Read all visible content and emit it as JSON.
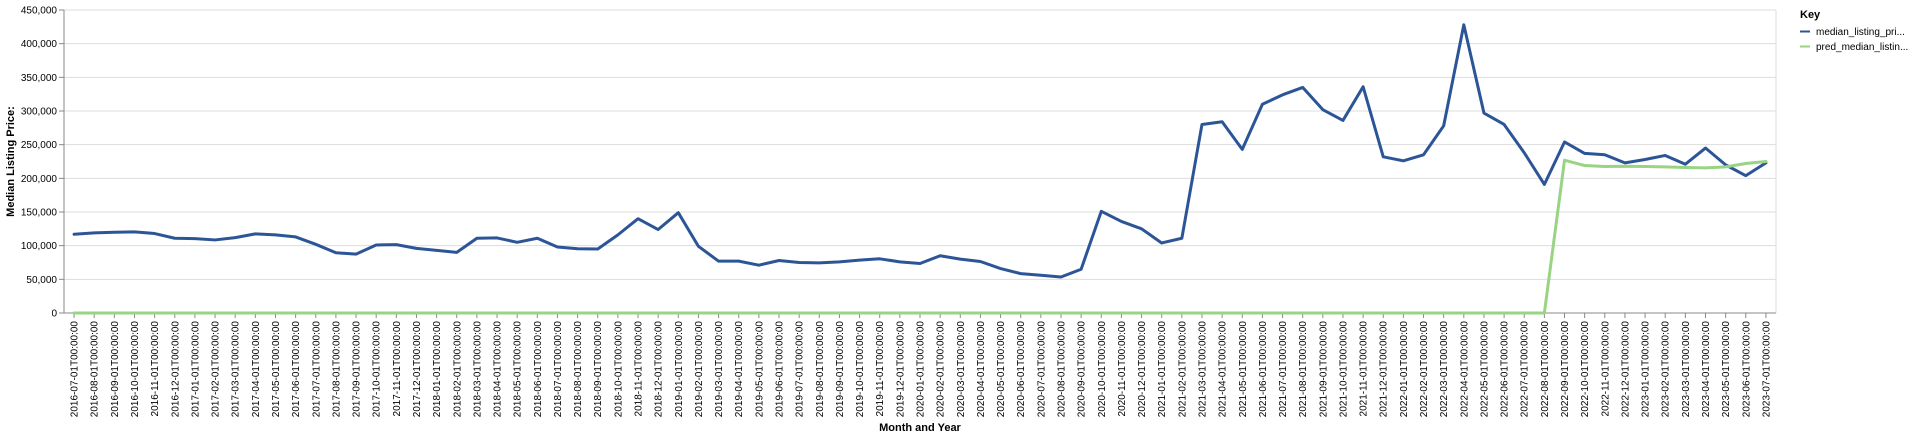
{
  "chart_data": {
    "type": "line",
    "xlabel": "Month and Year",
    "ylabel": "Median Listing Price:",
    "ylim": [
      0,
      450000
    ],
    "yticks": [
      0,
      50000,
      100000,
      150000,
      200000,
      250000,
      300000,
      350000,
      400000,
      450000
    ],
    "ytick_labels": [
      "0",
      "50,000",
      "100,000",
      "150,000",
      "200,000",
      "250,000",
      "300,000",
      "350,000",
      "400,000",
      "450,000"
    ],
    "grid": true,
    "legend_position": "top-right",
    "legend_title": "Key",
    "x": [
      "2016-07-01T00:00:00",
      "2016-08-01T00:00:00",
      "2016-09-01T00:00:00",
      "2016-10-01T00:00:00",
      "2016-11-01T00:00:00",
      "2016-12-01T00:00:00",
      "2017-01-01T00:00:00",
      "2017-02-01T00:00:00",
      "2017-03-01T00:00:00",
      "2017-04-01T00:00:00",
      "2017-05-01T00:00:00",
      "2017-06-01T00:00:00",
      "2017-07-01T00:00:00",
      "2017-08-01T00:00:00",
      "2017-09-01T00:00:00",
      "2017-10-01T00:00:00",
      "2017-11-01T00:00:00",
      "2017-12-01T00:00:00",
      "2018-01-01T00:00:00",
      "2018-02-01T00:00:00",
      "2018-03-01T00:00:00",
      "2018-04-01T00:00:00",
      "2018-05-01T00:00:00",
      "2018-06-01T00:00:00",
      "2018-07-01T00:00:00",
      "2018-08-01T00:00:00",
      "2018-09-01T00:00:00",
      "2018-10-01T00:00:00",
      "2018-11-01T00:00:00",
      "2018-12-01T00:00:00",
      "2019-01-01T00:00:00",
      "2019-02-01T00:00:00",
      "2019-03-01T00:00:00",
      "2019-04-01T00:00:00",
      "2019-05-01T00:00:00",
      "2019-06-01T00:00:00",
      "2019-07-01T00:00:00",
      "2019-08-01T00:00:00",
      "2019-09-01T00:00:00",
      "2019-10-01T00:00:00",
      "2019-11-01T00:00:00",
      "2019-12-01T00:00:00",
      "2020-01-01T00:00:00",
      "2020-02-01T00:00:00",
      "2020-03-01T00:00:00",
      "2020-04-01T00:00:00",
      "2020-05-01T00:00:00",
      "2020-06-01T00:00:00",
      "2020-07-01T00:00:00",
      "2020-08-01T00:00:00",
      "2020-09-01T00:00:00",
      "2020-10-01T00:00:00",
      "2020-11-01T00:00:00",
      "2020-12-01T00:00:00",
      "2021-01-01T00:00:00",
      "2021-02-01T00:00:00",
      "2021-03-01T00:00:00",
      "2021-04-01T00:00:00",
      "2021-05-01T00:00:00",
      "2021-06-01T00:00:00",
      "2021-07-01T00:00:00",
      "2021-08-01T00:00:00",
      "2021-09-01T00:00:00",
      "2021-10-01T00:00:00",
      "2021-11-01T00:00:00",
      "2021-12-01T00:00:00",
      "2022-01-01T00:00:00",
      "2022-02-01T00:00:00",
      "2022-03-01T00:00:00",
      "2022-04-01T00:00:00",
      "2022-05-01T00:00:00",
      "2022-06-01T00:00:00",
      "2022-07-01T00:00:00",
      "2022-08-01T00:00:00",
      "2022-09-01T00:00:00",
      "2022-10-01T00:00:00",
      "2022-11-01T00:00:00",
      "2022-12-01T00:00:00",
      "2023-01-01T00:00:00",
      "2023-02-01T00:00:00",
      "2023-03-01T00:00:00",
      "2023-04-01T00:00:00",
      "2023-05-01T00:00:00",
      "2023-06-01T00:00:00",
      "2023-07-01T00:00:00"
    ],
    "series": [
      {
        "name": "median_listing_pri...",
        "color": "#2c5597",
        "values": [
          117000,
          119000,
          120000,
          120500,
          118000,
          111000,
          110500,
          108500,
          112000,
          117500,
          116000,
          113000,
          102000,
          89500,
          87500,
          101000,
          101500,
          96000,
          93000,
          90000,
          111000,
          111500,
          105000,
          111000,
          98000,
          95500,
          95000,
          116000,
          140000,
          124000,
          149000,
          99000,
          77000,
          77000,
          71000,
          78000,
          75000,
          74500,
          76000,
          78500,
          80500,
          76000,
          73500,
          85000,
          80000,
          76500,
          66000,
          58500,
          56000,
          53500,
          65000,
          151000,
          136000,
          125000,
          104000,
          111000,
          280000,
          284000,
          243000,
          310000,
          324000,
          335000,
          302000,
          286000,
          336000,
          232000,
          226000,
          235000,
          278000,
          428000,
          297000,
          280000,
          238000,
          191000,
          254000,
          237000,
          235000,
          223000,
          228000,
          234000,
          221000,
          245000,
          220000,
          204000,
          223000
        ]
      },
      {
        "name": "pred_median_listin...",
        "color": "#98d484",
        "values": [
          0,
          0,
          0,
          0,
          0,
          0,
          0,
          0,
          0,
          0,
          0,
          0,
          0,
          0,
          0,
          0,
          0,
          0,
          0,
          0,
          0,
          0,
          0,
          0,
          0,
          0,
          0,
          0,
          0,
          0,
          0,
          0,
          0,
          0,
          0,
          0,
          0,
          0,
          0,
          0,
          0,
          0,
          0,
          0,
          0,
          0,
          0,
          0,
          0,
          0,
          0,
          0,
          0,
          0,
          0,
          0,
          0,
          0,
          0,
          0,
          0,
          0,
          0,
          0,
          0,
          0,
          0,
          0,
          0,
          0,
          0,
          0,
          0,
          0,
          227000,
          219000,
          217500,
          218000,
          217500,
          217000,
          216000,
          215500,
          217000,
          222000,
          225000
        ]
      }
    ]
  }
}
